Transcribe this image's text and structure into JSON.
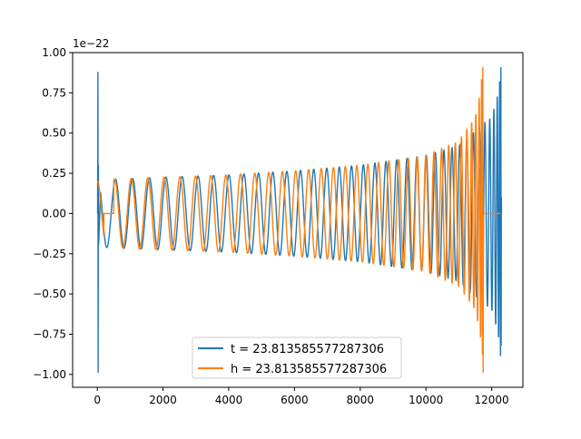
{
  "chart_data": {
    "type": "line",
    "title": "",
    "xlabel": "",
    "ylabel": "",
    "y_scale_label": "1e−22",
    "xlim": [
      -750,
      12950
    ],
    "ylim": [
      -1.08,
      1.0
    ],
    "x_ticks": [
      0,
      2000,
      4000,
      6000,
      8000,
      10000,
      12000
    ],
    "x_tick_labels": [
      "0",
      "2000",
      "4000",
      "6000",
      "8000",
      "10000",
      "12000"
    ],
    "y_ticks": [
      1.0,
      0.75,
      0.5,
      0.25,
      0.0,
      -0.25,
      -0.5,
      -0.75,
      -1.0
    ],
    "y_tick_labels": [
      "1.00",
      "0.75",
      "0.50",
      "0.25",
      "0.00",
      "−0.25",
      "−0.50",
      "−0.75",
      "−1.00"
    ],
    "grid": false,
    "legend_position": "lower-center",
    "series": [
      {
        "name": "t = 23.813585577287306",
        "color": "#1f77b4",
        "description": "chirp waveform (scaled 1e-22): initial spike near x=0 reaching ~0.88/-0.99, oscillation envelope growing from ~0.21 to ~0.91 peak at x~12280, then ringdown",
        "x_start": 0,
        "x_end": 12300,
        "initial_spike": {
          "x": 20,
          "y_max": 0.88,
          "y_min": -0.99
        },
        "envelope": [
          [
            100,
            0.21
          ],
          [
            2000,
            0.225
          ],
          [
            4000,
            0.24
          ],
          [
            6000,
            0.265
          ],
          [
            8000,
            0.3
          ],
          [
            10000,
            0.36
          ],
          [
            11000,
            0.42
          ],
          [
            11700,
            0.55
          ],
          [
            12000,
            0.6
          ],
          [
            12200,
            0.75
          ],
          [
            12280,
            0.91
          ]
        ],
        "final_min": -0.82
      },
      {
        "name": "h = 23.813585577287306",
        "color": "#ff7f0e",
        "description": "same chirp waveform shifted to peak at x~11730 (~0.91 / -0.99), flat at 0 from ~200 to ~500 and after ~11760 to ~12270",
        "x_start": 0,
        "x_end": 12270,
        "flat_segments": [
          [
            200,
            500
          ],
          [
            11760,
            12270
          ]
        ],
        "envelope": [
          [
            0,
            0.2
          ],
          [
            500,
            0.215
          ],
          [
            2000,
            0.225
          ],
          [
            4000,
            0.24
          ],
          [
            6000,
            0.265
          ],
          [
            8000,
            0.3
          ],
          [
            10000,
            0.36
          ],
          [
            11000,
            0.45
          ],
          [
            11500,
            0.6
          ],
          [
            11650,
            0.75
          ],
          [
            11730,
            0.91
          ]
        ],
        "final_min": -0.99
      }
    ]
  }
}
